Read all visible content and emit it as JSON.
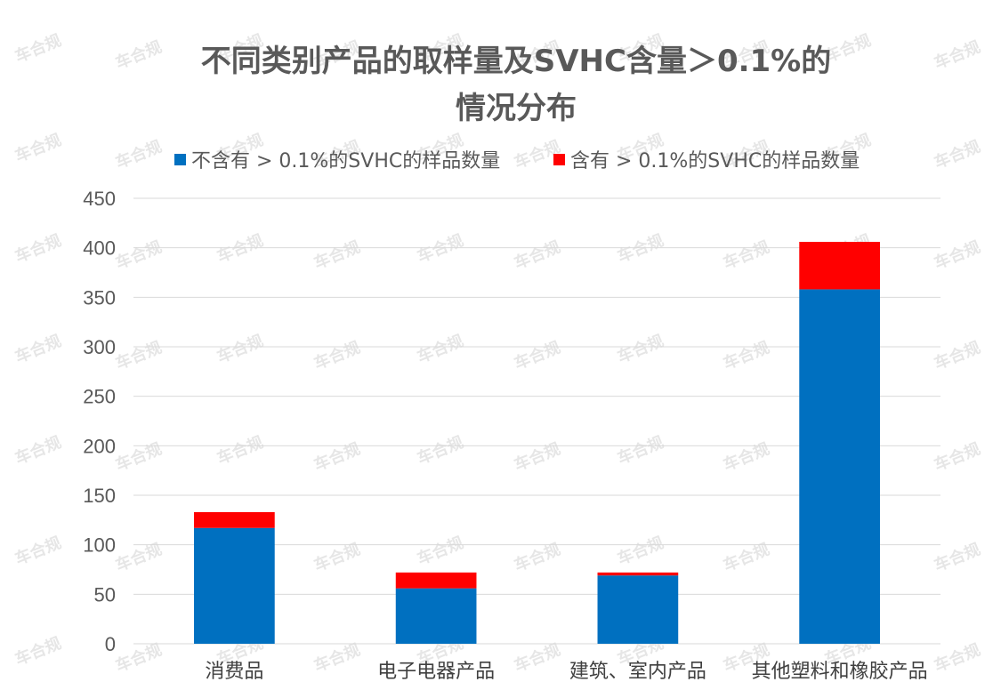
{
  "watermark": "车合规",
  "chart_data": {
    "type": "bar",
    "stacked": true,
    "title_lines": [
      "不同类别产品的取样量及SVHC含量＞0.1%的",
      "情况分布"
    ],
    "categories": [
      "消费品",
      "电子电器产品",
      "建筑、室内产品",
      "其他塑料和橡胶产品"
    ],
    "series": [
      {
        "name": "不含有 > 0.1%的SVHC的样品数量",
        "color": "#0070c0",
        "values": [
          117,
          56,
          69,
          358
        ]
      },
      {
        "name": "含有 > 0.1%的SVHC的样品数量",
        "color": "#ff0000",
        "values": [
          16,
          16,
          3,
          48
        ]
      }
    ],
    "ylim": [
      0,
      450
    ],
    "yticks": [
      0,
      50,
      100,
      150,
      200,
      250,
      300,
      350,
      400,
      450
    ],
    "grid": true,
    "legend_position": "top"
  }
}
